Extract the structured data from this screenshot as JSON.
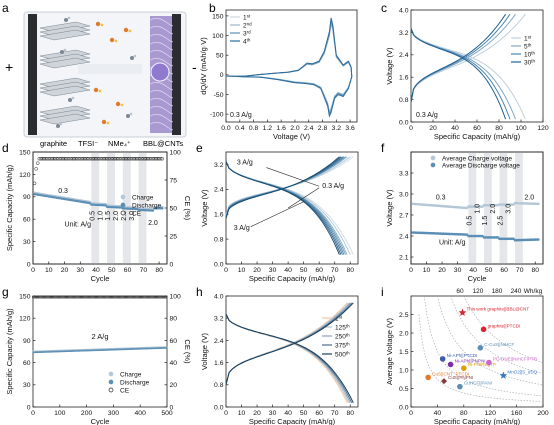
{
  "panel_letters": [
    "a",
    "b",
    "c",
    "d",
    "e",
    "f",
    "g",
    "h",
    "i"
  ],
  "schematic": {
    "plus_sign": "+",
    "minus_sign": "-",
    "anode_label": "graphite",
    "anion_label": "TFSI⁻",
    "cation_label": "NMe₄⁺",
    "cathode_label": "BBL@CNTs"
  },
  "chart_data": [
    {
      "panel": "b",
      "type": "line",
      "xlabel": "Voltage (V)",
      "ylabel": "dQ/dV (mAh/g·V)",
      "xlim": [
        0,
        3.8
      ],
      "ylim": [
        -120,
        165
      ],
      "xticks": [
        0.0,
        0.4,
        0.8,
        1.2,
        1.6,
        2.0,
        2.4,
        2.8,
        3.2,
        3.6
      ],
      "yticks": [
        -100,
        -50,
        0,
        50,
        100,
        150
      ],
      "annotation": "0.3 A/g",
      "legend_position": "top-left",
      "series": [
        {
          "name": "1st",
          "color": "#cfd8e0"
        },
        {
          "name": "2nd",
          "color": "#9fb8cc"
        },
        {
          "name": "3rd",
          "color": "#5b8fb5"
        },
        {
          "name": "4th",
          "color": "#2c6d99"
        }
      ],
      "base_curve": [
        [
          0.0,
          -3
        ],
        [
          0.3,
          -4
        ],
        [
          0.6,
          -3
        ],
        [
          1.0,
          1
        ],
        [
          1.4,
          4
        ],
        [
          1.8,
          7
        ],
        [
          2.1,
          12
        ],
        [
          2.35,
          30
        ],
        [
          2.5,
          28
        ],
        [
          2.7,
          35
        ],
        [
          2.85,
          60
        ],
        [
          3.0,
          110
        ],
        [
          3.05,
          145
        ],
        [
          3.1,
          125
        ],
        [
          3.2,
          50
        ],
        [
          3.4,
          25
        ],
        [
          3.55,
          35
        ],
        [
          3.63,
          20
        ],
        [
          3.65,
          -5
        ],
        [
          3.55,
          -35
        ],
        [
          3.4,
          -55
        ],
        [
          3.25,
          -50
        ],
        [
          3.15,
          -60
        ],
        [
          3.05,
          -95
        ],
        [
          3.0,
          -105
        ],
        [
          2.95,
          -80
        ],
        [
          2.75,
          -35
        ],
        [
          2.55,
          -25
        ],
        [
          2.3,
          -22
        ],
        [
          2.0,
          -20
        ],
        [
          1.5,
          -12
        ],
        [
          1.0,
          -6
        ],
        [
          0.5,
          -5
        ],
        [
          0.0,
          -3
        ]
      ]
    },
    {
      "panel": "c",
      "type": "line",
      "xlabel": "Specific Capacity (mAh/g)",
      "ylabel": "Voltage (V)",
      "xlim": [
        0,
        120
      ],
      "ylim": [
        0,
        4.0
      ],
      "xticks": [
        0,
        20,
        40,
        60,
        80,
        100,
        120
      ],
      "yticks": [
        0.0,
        0.8,
        1.6,
        2.4,
        3.2,
        4.0
      ],
      "annotation": "0.3 A/g",
      "legend_position": "right",
      "series": [
        {
          "name": "1st",
          "color": "#bfcfdc",
          "capacity": 104
        },
        {
          "name": "5th",
          "color": "#7fa6c4",
          "capacity": 95
        },
        {
          "name": "10th",
          "color": "#4a85b0",
          "capacity": 90
        },
        {
          "name": "30th",
          "color": "#1f6091",
          "capacity": 86
        }
      ]
    },
    {
      "panel": "d",
      "type": "scatter",
      "xlabel": "Cycle",
      "ylabel": "Specific Capacity (mAh/g)",
      "y2label": "CE (%)",
      "xlim": [
        0,
        85
      ],
      "ylim": [
        0,
        150
      ],
      "y2lim": [
        0,
        100
      ],
      "xticks": [
        0,
        10,
        20,
        30,
        40,
        50,
        60,
        70,
        80
      ],
      "yticks": [
        0,
        30,
        60,
        90,
        120,
        150
      ],
      "y2ticks": [
        0,
        25,
        50,
        75,
        100
      ],
      "rate_labels": [
        "0.3",
        "0.5",
        "1.0",
        "1.5",
        "2.0",
        "2.5",
        "3.0",
        "2.0"
      ],
      "unit_label": "Unit: A/g",
      "shaded_bands": [
        [
          37,
          42
        ],
        [
          47,
          52
        ],
        [
          57,
          62
        ],
        [
          67,
          72
        ]
      ],
      "legend": [
        "Charge",
        "Discharge",
        "CE"
      ],
      "legend_position": "right",
      "capacity_segments": [
        {
          "from": 1,
          "to": 36,
          "start": 95,
          "end": 83
        },
        {
          "from": 37,
          "to": 46,
          "start": 81,
          "end": 80
        },
        {
          "from": 47,
          "to": 56,
          "start": 78,
          "end": 77
        },
        {
          "from": 57,
          "to": 66,
          "start": 76,
          "end": 75
        },
        {
          "from": 67,
          "to": 76,
          "start": 74,
          "end": 73
        },
        {
          "from": 77,
          "to": 82,
          "start": 76,
          "end": 76
        }
      ],
      "ce": {
        "first": [
          72,
          85,
          90
        ],
        "steady": 94
      }
    },
    {
      "panel": "e",
      "type": "line",
      "xlabel": "Specific Capacity (mAh/g)",
      "ylabel": "Voltage (V)",
      "xlim": [
        0,
        85
      ],
      "ylim": [
        0,
        3.6
      ],
      "xticks": [
        0,
        10,
        20,
        30,
        40,
        50,
        60,
        70,
        80
      ],
      "yticks": [
        0.0,
        0.8,
        1.6,
        2.4,
        3.2
      ],
      "annotations": [
        "3 A/g",
        "0.3 A/g",
        "3 A/g"
      ],
      "capacities": [
        82,
        80,
        78,
        77,
        76,
        75,
        74,
        73
      ],
      "colors": [
        "#cfdce6",
        "#aec4d4",
        "#8eafc6",
        "#6c99b8",
        "#4f86aa",
        "#3a749c",
        "#275f88",
        "#184b6f"
      ]
    },
    {
      "panel": "f",
      "type": "scatter",
      "xlabel": "Cycle",
      "ylabel": "Voltage (V)",
      "xlim": [
        0,
        85
      ],
      "ylim": [
        2.0,
        3.6
      ],
      "xticks": [
        0,
        10,
        20,
        30,
        40,
        50,
        60,
        70,
        80
      ],
      "yticks": [
        2.1,
        2.4,
        2.7,
        3.0,
        3.3
      ],
      "rate_labels": [
        "0.3",
        "0.5",
        "1.0",
        "1.5",
        "2.0",
        "2.5",
        "3.0",
        "2.0"
      ],
      "unit_label": "Unit: A/g",
      "shaded_bands": [
        [
          37,
          42
        ],
        [
          47,
          52
        ],
        [
          57,
          62
        ],
        [
          67,
          72
        ]
      ],
      "legend": [
        "Average Charge voltage",
        "Average Discharge voltage"
      ],
      "legend_position": "top",
      "charge_voltage_segments": [
        {
          "from": 1,
          "to": 36,
          "start": 2.86,
          "end": 2.8
        },
        {
          "from": 37,
          "to": 46,
          "start": 2.82,
          "end": 2.82
        },
        {
          "from": 47,
          "to": 56,
          "start": 2.84,
          "end": 2.84
        },
        {
          "from": 57,
          "to": 66,
          "start": 2.85,
          "end": 2.85
        },
        {
          "from": 67,
          "to": 82,
          "start": 2.87,
          "end": 2.86
        }
      ],
      "discharge_voltage_segments": [
        {
          "from": 1,
          "to": 36,
          "start": 2.45,
          "end": 2.42
        },
        {
          "from": 37,
          "to": 46,
          "start": 2.4,
          "end": 2.4
        },
        {
          "from": 47,
          "to": 56,
          "start": 2.38,
          "end": 2.38
        },
        {
          "from": 57,
          "to": 66,
          "start": 2.36,
          "end": 2.36
        },
        {
          "from": 67,
          "to": 82,
          "start": 2.34,
          "end": 2.35
        }
      ]
    },
    {
      "panel": "g",
      "type": "scatter",
      "xlabel": "Cycle",
      "ylabel": "Specific Capacity (mAh/g)",
      "y2label": "CE (%)",
      "xlim": [
        0,
        500
      ],
      "ylim": [
        0,
        150
      ],
      "y2lim": [
        0,
        100
      ],
      "xticks": [
        0,
        100,
        200,
        300,
        400,
        500
      ],
      "yticks": [
        0,
        30,
        60,
        90,
        120,
        150
      ],
      "y2ticks": [
        0,
        20,
        40,
        60,
        80,
        100
      ],
      "annotation": "2 A/g",
      "legend": [
        "Charge",
        "Discharge",
        "CE"
      ],
      "legend_position": "bottom-right",
      "capacity_start": 74,
      "capacity_end": 80,
      "ce": 99
    },
    {
      "panel": "h",
      "type": "line",
      "xlabel": "Specific Capacity (mAh/g)",
      "ylabel": "Voltage (V)",
      "xlim": [
        0,
        85
      ],
      "ylim": [
        0,
        4.0
      ],
      "xticks": [
        0,
        10,
        20,
        30,
        40,
        50,
        60,
        70,
        80
      ],
      "yticks": [
        0.0,
        0.8,
        1.6,
        2.4,
        3.2,
        4.0
      ],
      "legend_position": "right",
      "series": [
        {
          "name": "1st",
          "color": "#f0c9a8",
          "capacity": 78
        },
        {
          "name": "125th",
          "color": "#b7c3cf",
          "capacity": 79
        },
        {
          "name": "250th",
          "color": "#8aa3b8",
          "capacity": 80
        },
        {
          "name": "375th",
          "color": "#4d7290",
          "capacity": 81
        },
        {
          "name": "500th",
          "color": "#1c3f5e",
          "capacity": 82
        }
      ]
    },
    {
      "panel": "i",
      "type": "scatter",
      "xlabel": "Specific Capacity (mAh/g)",
      "ylabel": "Average Voltage (V)",
      "top_axis_label": "Wh/kg",
      "top_ticks": [
        "60",
        "120",
        "180",
        "240"
      ],
      "xlim": [
        0,
        200
      ],
      "ylim": [
        0,
        3.0
      ],
      "xticks": [
        0,
        40,
        80,
        120,
        160,
        200
      ],
      "yticks": [
        0.0,
        0.5,
        1.0,
        1.5,
        2.0,
        2.5
      ],
      "points": [
        {
          "name": "This work graphite||BBL@CNT",
          "x": 78,
          "y": 2.55,
          "color": "#d9232e",
          "marker": "star"
        },
        {
          "name": "graphite||PTCDI",
          "x": 110,
          "y": 2.1,
          "color": "#d9232e",
          "marker": "circle"
        },
        {
          "name": "C-CuS||NiHCF",
          "x": 105,
          "y": 1.6,
          "color": "#5b8fb5",
          "marker": "circle"
        },
        {
          "name": "Ni-APh||PTCDI",
          "x": 48,
          "y": 1.3,
          "color": "#3a5fa8",
          "marker": "circle"
        },
        {
          "name": "Ni-APh||PNPNI",
          "x": 60,
          "y": 1.15,
          "color": "#7b2fa8",
          "marker": "circle"
        },
        {
          "name": "Ni-PNPNI||TP",
          "x": 80,
          "y": 1.05,
          "color": "#e0a000",
          "marker": "circle"
        },
        {
          "name": "PQ-DNE||NiHCF/PTB",
          "x": 118,
          "y": 1.2,
          "color": "#cc66cc",
          "marker": "circle"
        },
        {
          "name": "MnO2||S_dSQ",
          "x": 140,
          "y": 0.85,
          "color": "#3a77c0",
          "marker": "star"
        },
        {
          "name": "CuS||CNT_PTCDI",
          "x": 26,
          "y": 0.8,
          "color": "#e07a2a",
          "marker": "circle"
        },
        {
          "name": "CuS||PNPNI",
          "x": 50,
          "y": 0.7,
          "color": "#8b3a3a",
          "marker": "diamond"
        },
        {
          "name": "CuHCF||PANI",
          "x": 74,
          "y": 0.55,
          "color": "#5b8fb5",
          "marker": "circle"
        }
      ]
    }
  ]
}
